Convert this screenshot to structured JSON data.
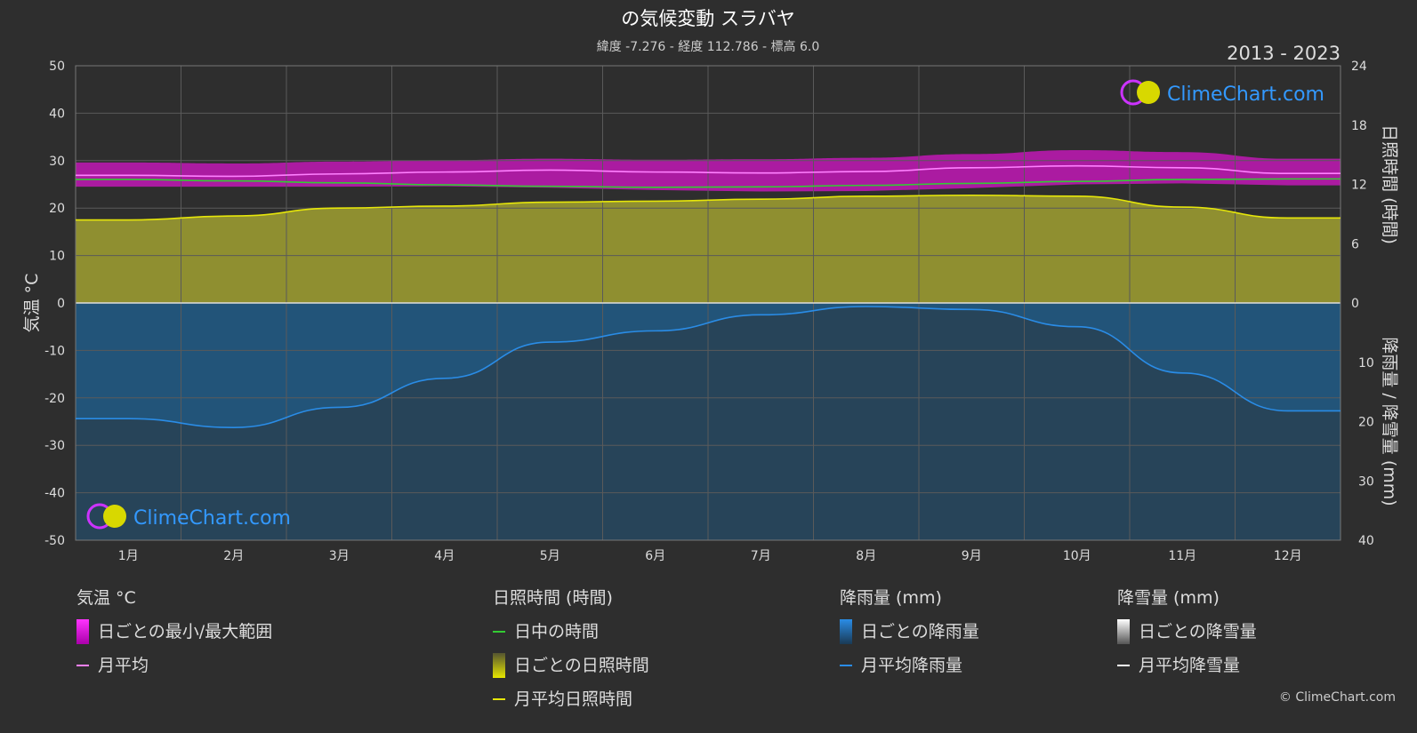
{
  "chart_data": {
    "type": "area",
    "title": "の気候変動 スラバヤ",
    "subtitle": "緯度 -7.276 - 経度 112.786 - 標高 6.0",
    "period": "2013 - 2023",
    "watermark": "ClimeChart.com",
    "copyright": "© ClimeChart.com",
    "categories": [
      "1月",
      "2月",
      "3月",
      "4月",
      "5月",
      "6月",
      "7月",
      "8月",
      "9月",
      "10月",
      "11月",
      "12月"
    ],
    "y_left": {
      "label": "気温 °C",
      "range": [
        -50,
        50
      ],
      "ticks": [
        "50",
        "40",
        "30",
        "20",
        "10",
        "0",
        "-10",
        "-20",
        "-30",
        "-40",
        "-50"
      ]
    },
    "y_right_top": {
      "label": "日照時間 (時間)",
      "range": [
        0,
        24
      ],
      "ticks": [
        "24",
        "18",
        "12",
        "6",
        "0"
      ]
    },
    "y_right_bottom": {
      "label": "降雨量 / 降雪量 (mm)",
      "range": [
        0,
        40
      ],
      "ticks": [
        "0",
        "10",
        "20",
        "30",
        "40"
      ]
    },
    "series": [
      {
        "name": "日ごとの最小/最大範囲",
        "kind": "band",
        "min": [
          24.5,
          24.5,
          24.5,
          24.6,
          24.3,
          23.8,
          23.5,
          23.6,
          24.2,
          25.0,
          25.2,
          24.8
        ],
        "max": [
          29.6,
          29.4,
          29.8,
          30.1,
          30.4,
          30.2,
          30.3,
          30.6,
          31.4,
          32.2,
          31.8,
          30.4
        ]
      },
      {
        "name": "月平均",
        "kind": "line",
        "values": [
          26.9,
          26.7,
          27.2,
          27.6,
          28.0,
          27.6,
          27.4,
          27.7,
          28.5,
          28.9,
          28.5,
          27.3
        ]
      },
      {
        "name": "日中の時間",
        "kind": "line",
        "values": [
          12.5,
          12.35,
          12.15,
          11.95,
          11.8,
          11.7,
          11.75,
          11.9,
          12.1,
          12.3,
          12.5,
          12.55
        ]
      },
      {
        "name": "月平均日照時間",
        "kind": "line",
        "values": [
          8.4,
          8.8,
          9.6,
          9.8,
          10.2,
          10.3,
          10.5,
          10.8,
          10.9,
          10.8,
          9.7,
          8.6
        ]
      },
      {
        "name": "月平均降雨量",
        "kind": "line",
        "values": [
          19.5,
          21.0,
          17.6,
          12.7,
          6.6,
          4.7,
          2.0,
          0.6,
          1.1,
          4.0,
          11.8,
          18.2
        ]
      },
      {
        "name": "月平均降雪量",
        "kind": "line",
        "values": [
          0,
          0,
          0,
          0,
          0,
          0,
          0,
          0,
          0,
          0,
          0,
          0
        ]
      }
    ],
    "colors": {
      "background": "#2e2e2e",
      "temp_band": "#d516c8",
      "temp_avg": "#ff80ff",
      "daylight": "#33cc33",
      "sunshine_fill": "#a0a030",
      "sunshine_avg": "#e6e60a",
      "rain_fill": "#1f5f8f",
      "rain_avg": "#2a8ce6",
      "snow_avg": "#ffffff",
      "grid": "#5a5a5a"
    }
  },
  "legend": {
    "temp": {
      "title": "気温 °C",
      "items": [
        "日ごとの最小/最大範囲",
        "月平均"
      ]
    },
    "sun": {
      "title": "日照時間 (時間)",
      "items": [
        "日中の時間",
        "日ごとの日照時間",
        "月平均日照時間"
      ]
    },
    "rain": {
      "title": "降雨量 (mm)",
      "items": [
        "日ごとの降雨量",
        "月平均降雨量"
      ]
    },
    "snow": {
      "title": "降雪量 (mm)",
      "items": [
        "日ごとの降雪量",
        "月平均降雪量"
      ]
    }
  }
}
